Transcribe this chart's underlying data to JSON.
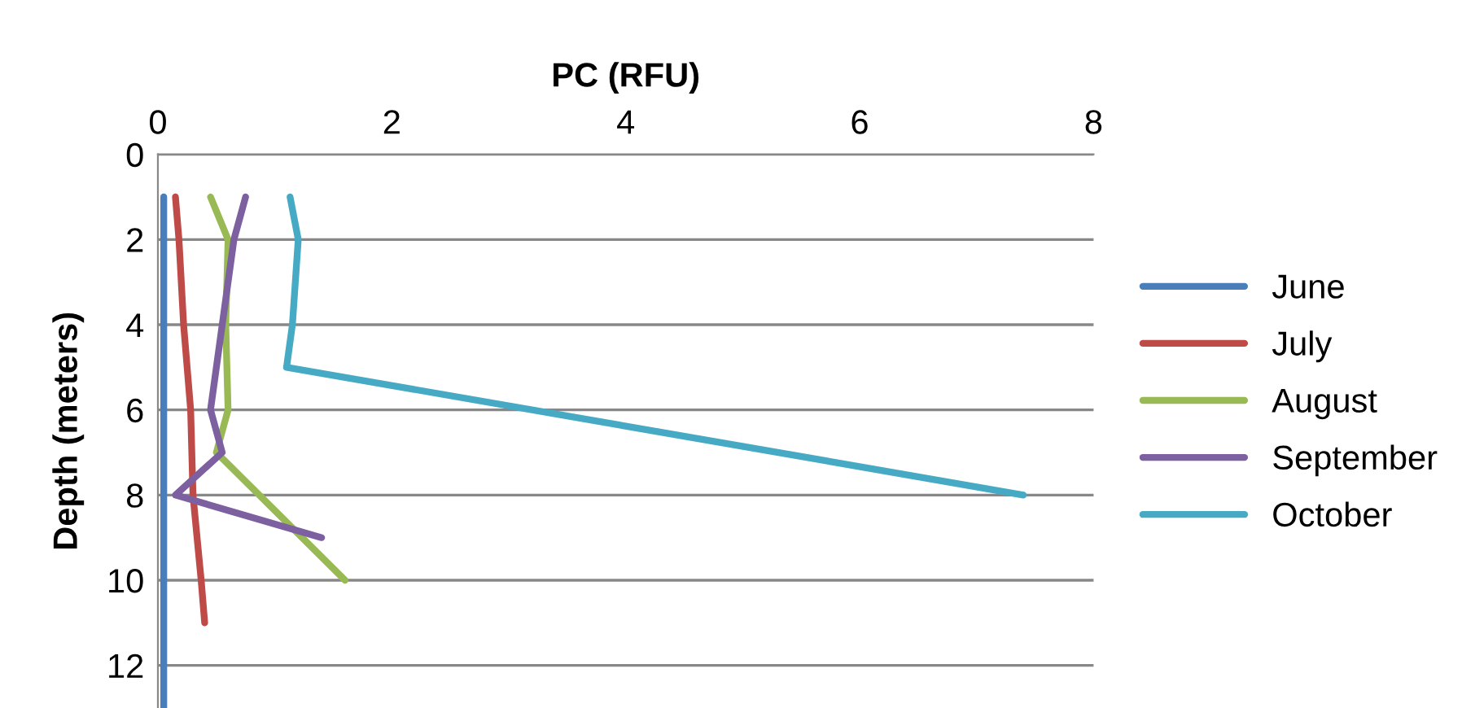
{
  "chart_data": {
    "type": "line",
    "xlabel": "PC (RFU)",
    "ylabel": "Depth (meters)",
    "xlim": [
      0,
      8
    ],
    "xticks": [
      0,
      2,
      4,
      6,
      8
    ],
    "ylim": [
      13,
      0
    ],
    "yticks": [
      0,
      2,
      4,
      6,
      8,
      10,
      12
    ],
    "grid": "y",
    "legend": "right",
    "marker": "none",
    "line_style": "solid",
    "series": [
      {
        "name": "June",
        "color": "#4a7ebb",
        "x": [
          0.05,
          0.05
        ],
        "values": [
          1,
          13
        ]
      },
      {
        "name": "July",
        "color": "#be4b48",
        "x": [
          0.15,
          0.18,
          0.22,
          0.28,
          0.3,
          0.37,
          0.4
        ],
        "values": [
          1,
          2,
          4,
          6,
          8,
          10,
          11
        ]
      },
      {
        "name": "August",
        "color": "#98b954",
        "x": [
          0.45,
          0.6,
          0.58,
          0.6,
          0.5,
          1.6
        ],
        "values": [
          1,
          2,
          4,
          6,
          7,
          10
        ]
      },
      {
        "name": "September",
        "color": "#7d60a0",
        "x": [
          0.75,
          0.65,
          0.55,
          0.5,
          0.45,
          0.55,
          0.15,
          1.4
        ],
        "values": [
          1,
          2,
          4,
          5,
          6,
          7,
          8,
          9
        ]
      },
      {
        "name": "October",
        "color": "#46aac5",
        "x": [
          1.13,
          1.2,
          1.15,
          1.1,
          7.4
        ],
        "values": [
          1,
          2,
          4,
          5,
          8
        ]
      }
    ]
  }
}
